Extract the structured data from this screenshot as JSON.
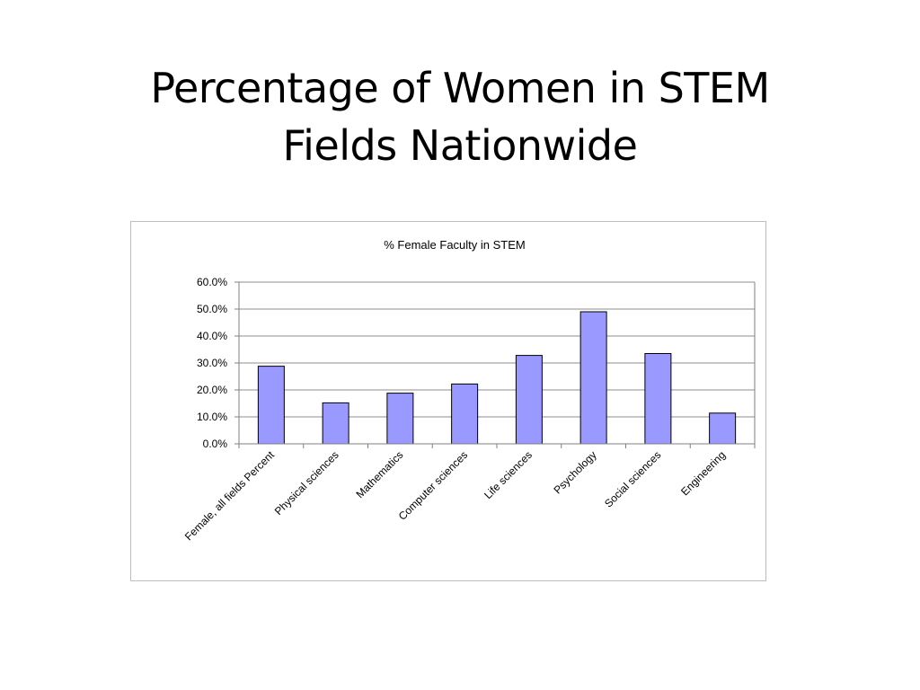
{
  "slide": {
    "title_line1": "Percentage of Women in STEM",
    "title_line2": "Fields Nationwide"
  },
  "chart_data": {
    "type": "bar",
    "title": "% Female Faculty in STEM",
    "xlabel": "",
    "ylabel": "",
    "categories": [
      "Female, all fields Percent",
      "Physical sciences",
      "Mathematics",
      "Computer sciences",
      "Life sciences",
      "Psychology",
      "Social sciences",
      "Engineering"
    ],
    "values": [
      28.8,
      15.2,
      18.8,
      22.2,
      32.8,
      49.0,
      33.5,
      11.4
    ],
    "ylim": [
      0,
      60
    ],
    "yticks": [
      0,
      10,
      20,
      30,
      40,
      50,
      60
    ],
    "ytick_labels": [
      "0.0%",
      "10.0%",
      "20.0%",
      "30.0%",
      "40.0%",
      "50.0%",
      "60.0%"
    ],
    "grid": true,
    "legend": "none",
    "colors": {
      "bar_fill": "#9999ff",
      "bar_stroke": "#000000",
      "gridline": "#8c8c8c",
      "axis": "#808080"
    }
  }
}
